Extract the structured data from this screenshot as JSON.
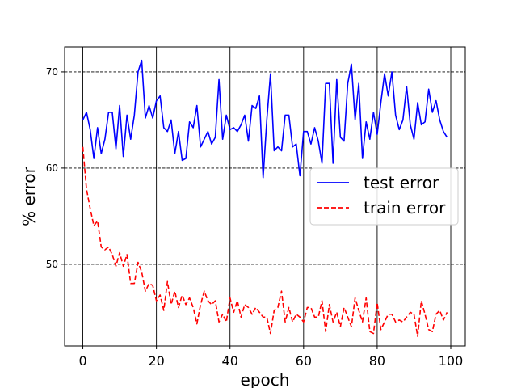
{
  "chart_data": {
    "type": "line",
    "title": "",
    "xlabel": "epoch",
    "ylabel": "% error",
    "xlim": [
      -4.95,
      103.95
    ],
    "ylim": [
      41.5,
      72.6
    ],
    "x_ticks": [
      0,
      20,
      40,
      60,
      80,
      100
    ],
    "x_tick_labels": [
      "0",
      "20",
      "40",
      "60",
      "80",
      "100"
    ],
    "y_ticks": [
      50,
      60,
      70
    ],
    "y_tick_labels": [
      "50",
      "60",
      "70"
    ],
    "grid": {
      "x": "solid black at x ticks",
      "y": "dashed black at y ticks"
    },
    "legend": {
      "placement": "center-right"
    },
    "series": [
      {
        "name": "test error",
        "color": "#0000ff",
        "line_style": "solid",
        "values": [
          65.0,
          65.8,
          64.0,
          61.0,
          64.2,
          61.5,
          63.0,
          65.8,
          65.8,
          62.0,
          66.5,
          61.2,
          65.5,
          63.0,
          65.5,
          70.0,
          71.2,
          65.2,
          66.5,
          65.2,
          67.0,
          67.5,
          64.2,
          63.8,
          65.0,
          61.5,
          63.8,
          60.8,
          61.0,
          64.8,
          64.2,
          66.5,
          62.2,
          63.0,
          63.8,
          62.5,
          63.2,
          69.2,
          63.0,
          65.5,
          64.0,
          64.2,
          63.8,
          64.5,
          65.5,
          62.8,
          66.5,
          66.2,
          67.5,
          59.0,
          65.0,
          69.8,
          61.8,
          62.2,
          61.8,
          65.5,
          65.5,
          62.2,
          62.5,
          59.2,
          63.8,
          63.8,
          62.5,
          64.2,
          62.8,
          60.5,
          68.8,
          68.8,
          60.5,
          69.2,
          63.2,
          62.8,
          68.8,
          70.8,
          65.0,
          68.8,
          61.0,
          64.8,
          63.0,
          65.8,
          63.5,
          66.8,
          69.8,
          67.5,
          70.0,
          65.5,
          64.0,
          65.0,
          68.5,
          64.5,
          63.0,
          66.8,
          64.5,
          64.8,
          68.2,
          65.8,
          67.0,
          65.0,
          63.8,
          63.2
        ]
      },
      {
        "name": "train error",
        "color": "#ff0000",
        "line_style": "dashed",
        "values": [
          62.2,
          57.8,
          55.8,
          54.0,
          54.5,
          51.8,
          51.5,
          51.8,
          51.0,
          49.8,
          51.2,
          49.8,
          51.0,
          48.0,
          48.0,
          50.2,
          49.2,
          47.2,
          48.0,
          47.8,
          46.2,
          46.8,
          45.2,
          48.2,
          45.8,
          47.2,
          45.5,
          46.8,
          45.8,
          46.5,
          45.5,
          43.8,
          45.8,
          47.2,
          46.2,
          45.8,
          46.2,
          44.0,
          44.8,
          44.0,
          46.5,
          45.0,
          46.2,
          44.5,
          45.8,
          45.5,
          44.8,
          45.5,
          45.0,
          44.5,
          44.5,
          42.8,
          45.2,
          45.5,
          47.2,
          44.0,
          45.5,
          44.0,
          44.8,
          44.5,
          44.0,
          45.5,
          45.5,
          44.5,
          44.5,
          46.2,
          43.0,
          45.8,
          44.0,
          45.0,
          43.5,
          45.5,
          44.5,
          43.5,
          46.5,
          45.2,
          44.0,
          46.5,
          43.0,
          42.8,
          46.0,
          43.2,
          44.0,
          44.8,
          44.8,
          44.0,
          44.2,
          44.0,
          44.5,
          45.0,
          44.8,
          42.5,
          46.2,
          44.8,
          43.2,
          43.0,
          44.8,
          45.2,
          44.2,
          45.0
        ]
      }
    ]
  }
}
